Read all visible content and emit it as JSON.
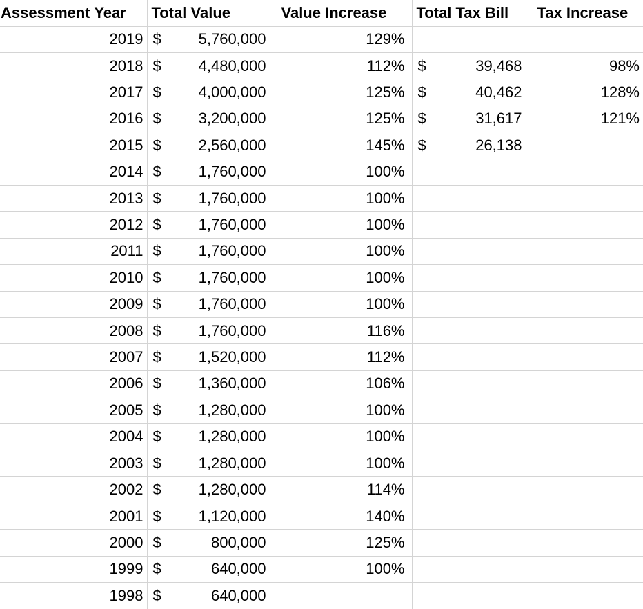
{
  "table": {
    "currency_symbol": "$",
    "columns": [
      {
        "key": "year",
        "label": "Assessment Year"
      },
      {
        "key": "total_value",
        "label": "Total Value"
      },
      {
        "key": "value_increase",
        "label": "Value Increase"
      },
      {
        "key": "total_tax_bill",
        "label": "Total Tax Bill"
      },
      {
        "key": "tax_increase",
        "label": "Tax Increase"
      }
    ],
    "rows": [
      {
        "year": "2019",
        "total_value": "5,760,000",
        "value_increase": "129%",
        "total_tax_bill": "",
        "tax_increase": ""
      },
      {
        "year": "2018",
        "total_value": "4,480,000",
        "value_increase": "112%",
        "total_tax_bill": "39,468",
        "tax_increase": "98%"
      },
      {
        "year": "2017",
        "total_value": "4,000,000",
        "value_increase": "125%",
        "total_tax_bill": "40,462",
        "tax_increase": "128%"
      },
      {
        "year": "2016",
        "total_value": "3,200,000",
        "value_increase": "125%",
        "total_tax_bill": "31,617",
        "tax_increase": "121%"
      },
      {
        "year": "2015",
        "total_value": "2,560,000",
        "value_increase": "145%",
        "total_tax_bill": "26,138",
        "tax_increase": ""
      },
      {
        "year": "2014",
        "total_value": "1,760,000",
        "value_increase": "100%",
        "total_tax_bill": "",
        "tax_increase": ""
      },
      {
        "year": "2013",
        "total_value": "1,760,000",
        "value_increase": "100%",
        "total_tax_bill": "",
        "tax_increase": ""
      },
      {
        "year": "2012",
        "total_value": "1,760,000",
        "value_increase": "100%",
        "total_tax_bill": "",
        "tax_increase": ""
      },
      {
        "year": "2011",
        "total_value": "1,760,000",
        "value_increase": "100%",
        "total_tax_bill": "",
        "tax_increase": ""
      },
      {
        "year": "2010",
        "total_value": "1,760,000",
        "value_increase": "100%",
        "total_tax_bill": "",
        "tax_increase": ""
      },
      {
        "year": "2009",
        "total_value": "1,760,000",
        "value_increase": "100%",
        "total_tax_bill": "",
        "tax_increase": ""
      },
      {
        "year": "2008",
        "total_value": "1,760,000",
        "value_increase": "116%",
        "total_tax_bill": "",
        "tax_increase": ""
      },
      {
        "year": "2007",
        "total_value": "1,520,000",
        "value_increase": "112%",
        "total_tax_bill": "",
        "tax_increase": ""
      },
      {
        "year": "2006",
        "total_value": "1,360,000",
        "value_increase": "106%",
        "total_tax_bill": "",
        "tax_increase": ""
      },
      {
        "year": "2005",
        "total_value": "1,280,000",
        "value_increase": "100%",
        "total_tax_bill": "",
        "tax_increase": ""
      },
      {
        "year": "2004",
        "total_value": "1,280,000",
        "value_increase": "100%",
        "total_tax_bill": "",
        "tax_increase": ""
      },
      {
        "year": "2003",
        "total_value": "1,280,000",
        "value_increase": "100%",
        "total_tax_bill": "",
        "tax_increase": ""
      },
      {
        "year": "2002",
        "total_value": "1,280,000",
        "value_increase": "114%",
        "total_tax_bill": "",
        "tax_increase": ""
      },
      {
        "year": "2001",
        "total_value": "1,120,000",
        "value_increase": "140%",
        "total_tax_bill": "",
        "tax_increase": ""
      },
      {
        "year": "2000",
        "total_value": "800,000",
        "value_increase": "125%",
        "total_tax_bill": "",
        "tax_increase": ""
      },
      {
        "year": "1999",
        "total_value": "640,000",
        "value_increase": "100%",
        "total_tax_bill": "",
        "tax_increase": ""
      },
      {
        "year": "1998",
        "total_value": "640,000",
        "value_increase": "",
        "total_tax_bill": "",
        "tax_increase": ""
      }
    ]
  },
  "colors": {
    "gridline": "#d4d4d4",
    "text": "#000000",
    "background": "#ffffff"
  }
}
